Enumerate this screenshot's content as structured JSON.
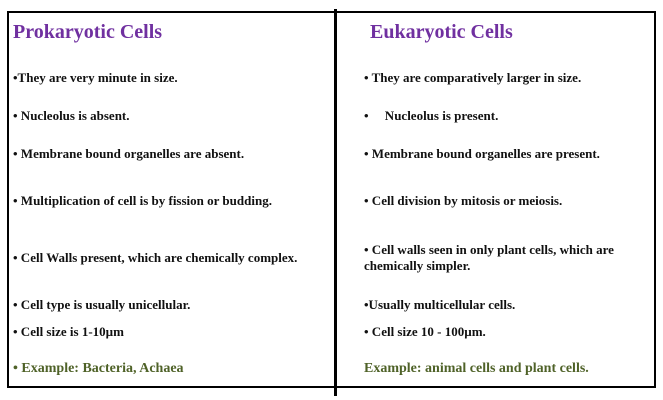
{
  "colors": {
    "title": "#7030a0",
    "example": "#4f6228",
    "border": "#000000"
  },
  "prokaryotic": {
    "title": "Prokaryotic Cells",
    "items": [
      "•They are very minute in size.",
      "• Nucleolus is absent.",
      "• Membrane bound organelles are absent.",
      "• Multiplication of cell is by fission or budding.",
      "• Cell Walls present, which are chemically complex.",
      "• Cell type is usually unicellular.",
      "• Cell size is 1-10µm"
    ],
    "example": "• Example: Bacteria, Achaea"
  },
  "eukaryotic": {
    "title": "Eukaryotic Cells",
    "items": [
      "• They are comparatively larger in size.",
      "•     Nucleolus is present.",
      "• Membrane bound organelles are present.",
      "• Cell division by mitosis or meiosis.",
      "• Cell walls seen in only plant cells, which are chemically simpler.",
      "•Usually multicellular cells.",
      "• Cell size 10 - 100µm."
    ],
    "example": "Example: animal cells and plant cells."
  }
}
